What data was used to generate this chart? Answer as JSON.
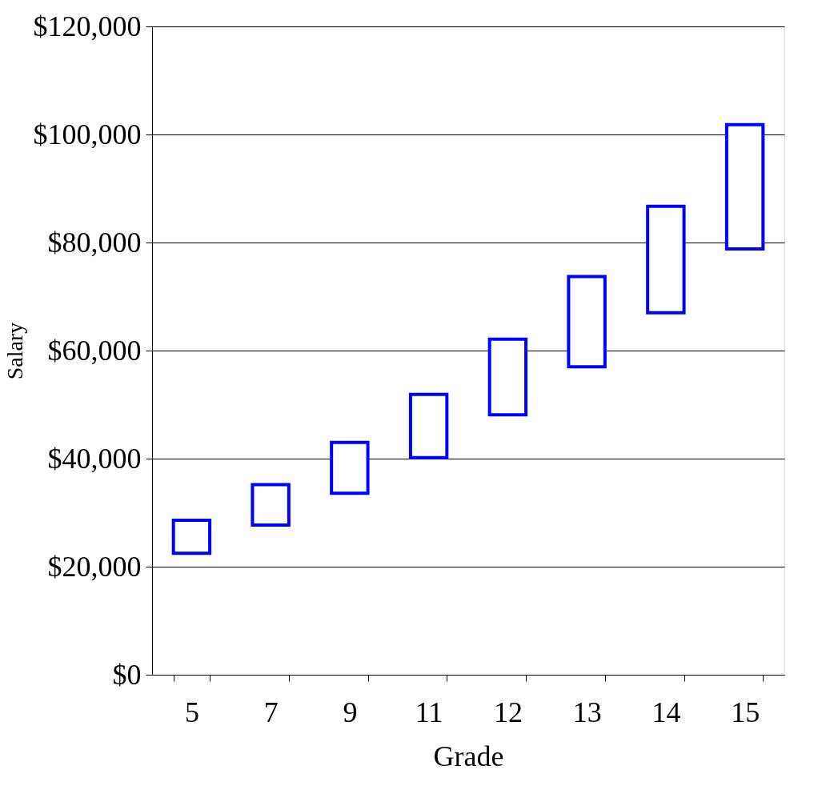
{
  "chart_data": {
    "type": "bar",
    "xlabel": "Grade",
    "ylabel": "Salary",
    "categories": [
      "5",
      "7",
      "9",
      "11",
      "12",
      "13",
      "14",
      "15"
    ],
    "base": [
      22500,
      27700,
      33600,
      40200,
      48100,
      57000,
      67000,
      78800
    ],
    "values": [
      6100,
      7500,
      9400,
      11700,
      14000,
      16700,
      19700,
      23000
    ],
    "color": "#0000ff",
    "ylim": [
      0,
      120000
    ],
    "yticks": [
      {
        "value": 0,
        "label": "$0"
      },
      {
        "value": 20000,
        "label": "$20,000"
      },
      {
        "value": 40000,
        "label": "$40,000"
      },
      {
        "value": 60000,
        "label": "$60,000"
      },
      {
        "value": 80000,
        "label": "$80,000"
      },
      {
        "value": 100000,
        "label": "$100,000"
      },
      {
        "value": 120000,
        "label": "$120,000"
      }
    ],
    "grid": "y"
  }
}
